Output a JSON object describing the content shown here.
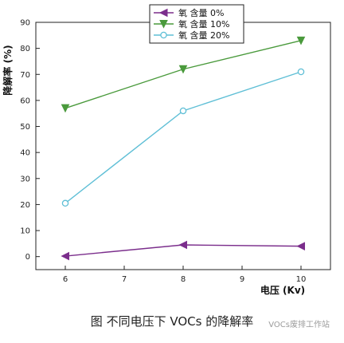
{
  "chart_data": {
    "type": "line",
    "x": [
      6,
      8,
      10
    ],
    "series": [
      {
        "name": "氧 含量 0%",
        "values": [
          0.2,
          4.5,
          4.0
        ],
        "color": "#7b2e8c",
        "marker": "triangle-left"
      },
      {
        "name": "氧 含量 10%",
        "values": [
          57,
          72,
          83
        ],
        "color": "#4a9a3c",
        "marker": "triangle-down"
      },
      {
        "name": "氧 含量 20%",
        "values": [
          20.5,
          56,
          71
        ],
        "color": "#5fbfd6",
        "marker": "circle-open"
      }
    ],
    "xlabel": "电压 (Kv)",
    "ylabel": "降解率 (%)",
    "xlim": [
      5.5,
      10.5
    ],
    "ylim": [
      -5,
      90
    ],
    "xticks": [
      "6",
      "7",
      "8",
      "9",
      "10"
    ],
    "yticks": [
      "0",
      "10",
      "20",
      "30",
      "40",
      "50",
      "60",
      "70",
      "80",
      "90"
    ],
    "legend_position": "top-center",
    "grid": false
  },
  "caption": "图    不同电压下 VOCs 的降解率",
  "watermark": "VOCs废排工作站"
}
